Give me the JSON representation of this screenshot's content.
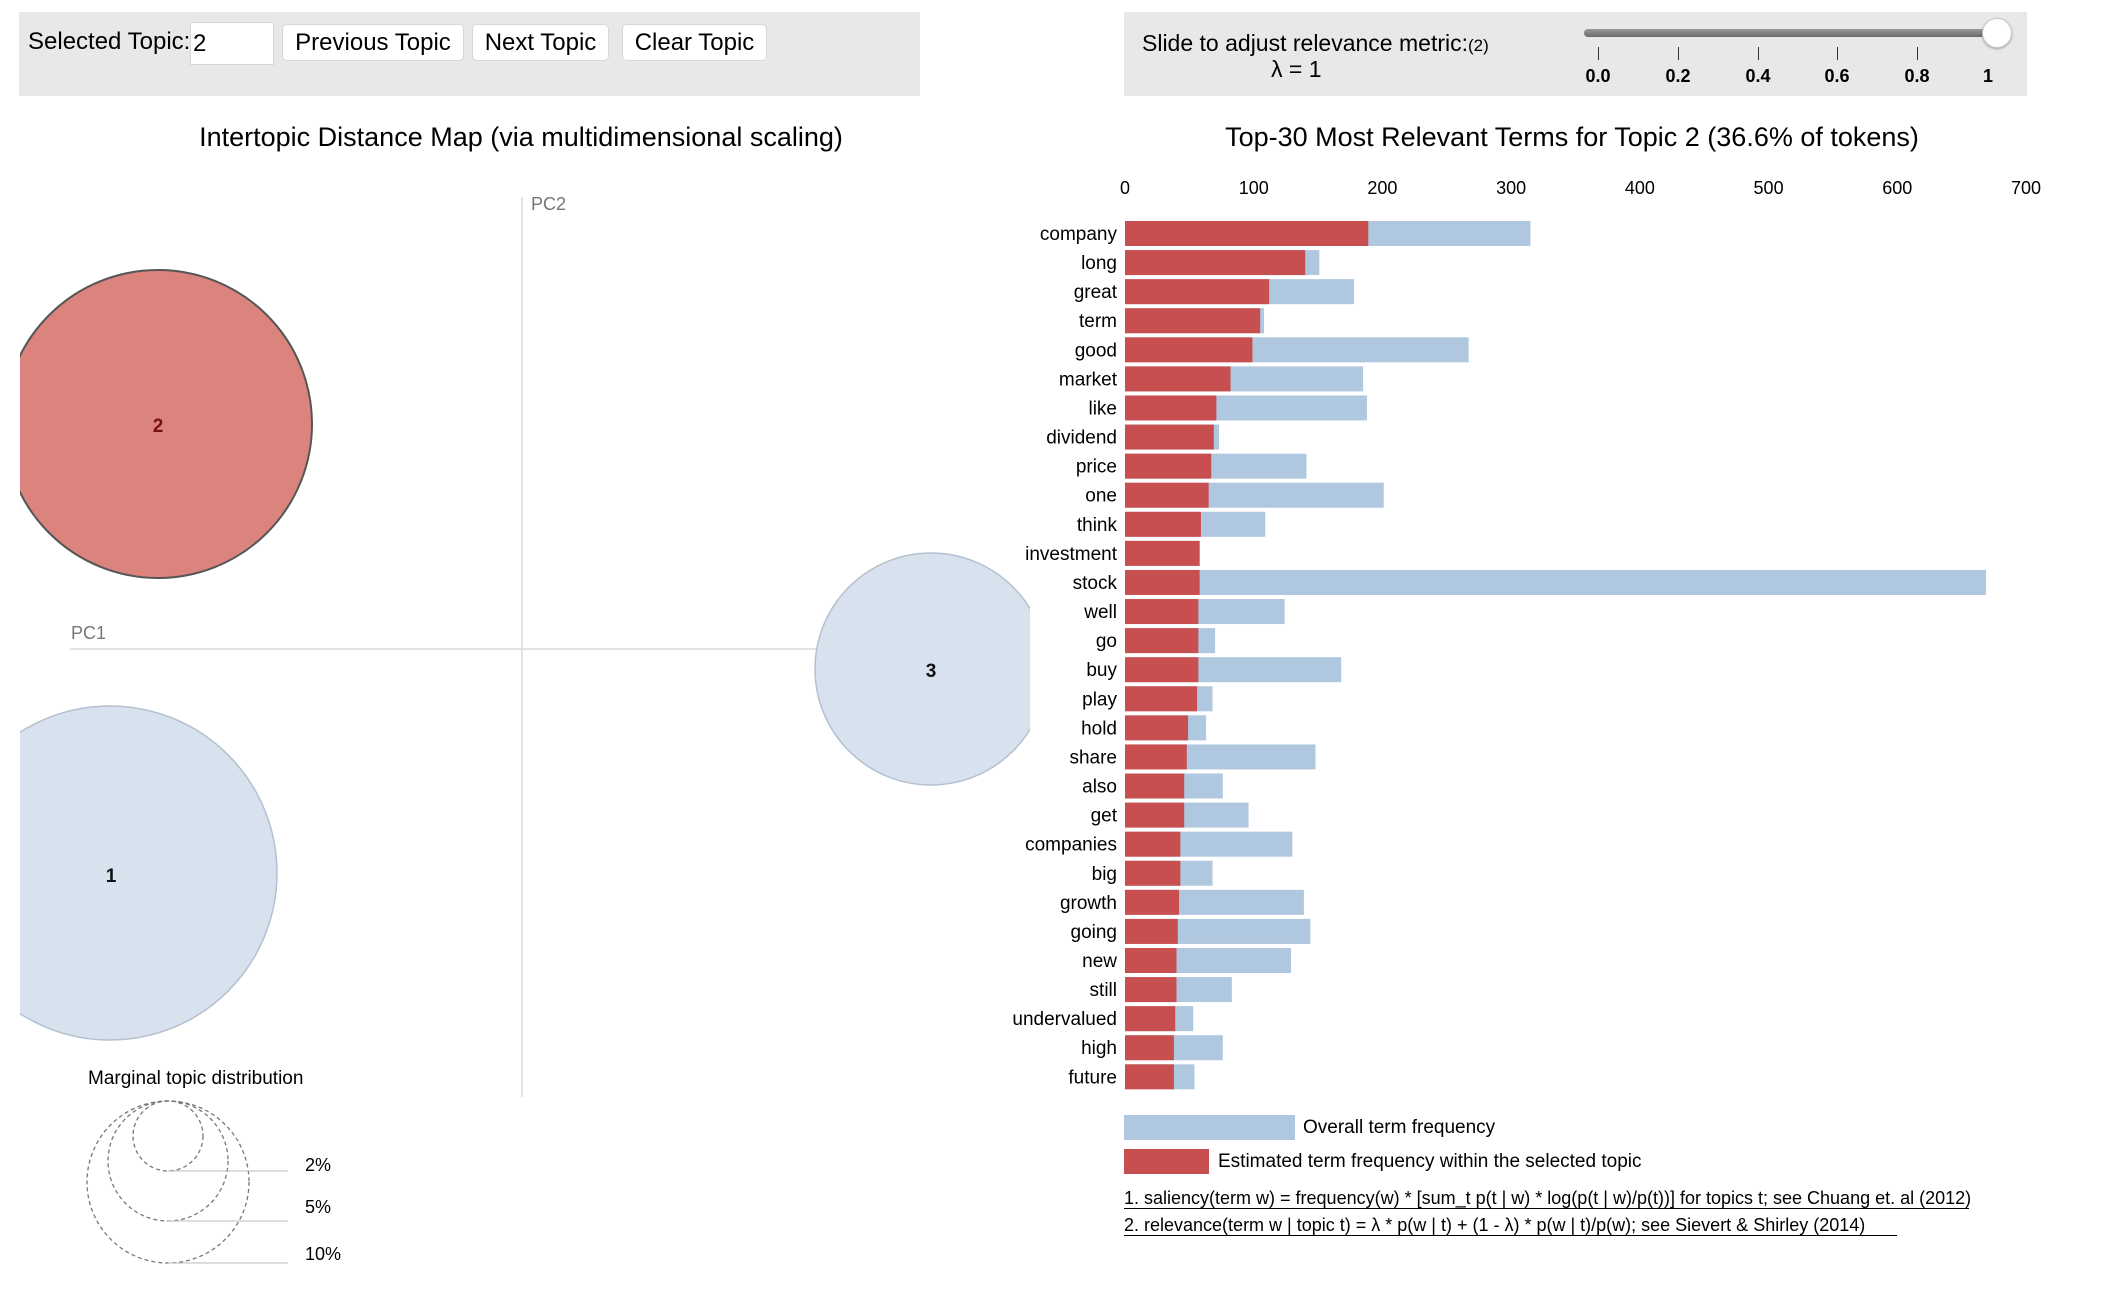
{
  "controls": {
    "selected_topic_label": "Selected Topic:",
    "selected_topic_value": "2",
    "prev_label": "Previous Topic",
    "next_label": "Next Topic",
    "clear_label": "Clear Topic"
  },
  "slider": {
    "label": "Slide to adjust relevance metric:",
    "footnote_ref": "(2)",
    "lambda_label": "λ = 1",
    "value": 1,
    "ticks": [
      "0.0",
      "0.2",
      "0.4",
      "0.6",
      "0.8",
      "1"
    ]
  },
  "intertopic_map": {
    "title": "Intertopic Distance Map (via multidimensional scaling)",
    "axis_x_label": "PC1",
    "axis_y_label": "PC2",
    "marginal_title": "Marginal topic distribution",
    "marginal_labels": [
      "2%",
      "5%",
      "10%"
    ],
    "topics": [
      {
        "id": "1",
        "selected": false
      },
      {
        "id": "2",
        "selected": true
      },
      {
        "id": "3",
        "selected": false
      }
    ]
  },
  "colors": {
    "overall": "#b0c7e0",
    "topic": "#c84f4f",
    "selected_circle": "#db847e",
    "circle_default": "#d8e2ee"
  },
  "chart_data": {
    "type": "bar",
    "title": "Top-30 Most Relevant Terms for Topic 2 (36.6% of tokens)",
    "orientation": "horizontal",
    "xlim": [
      0,
      700
    ],
    "x_ticks": [
      "0",
      "100",
      "200",
      "300",
      "400",
      "500",
      "600",
      "700"
    ],
    "categories": [
      "company",
      "long",
      "great",
      "term",
      "good",
      "market",
      "like",
      "dividend",
      "price",
      "one",
      "think",
      "investment",
      "stock",
      "well",
      "go",
      "buy",
      "play",
      "hold",
      "share",
      "also",
      "get",
      "companies",
      "big",
      "growth",
      "going",
      "new",
      "still",
      "undervalued",
      "high",
      "future"
    ],
    "series": [
      {
        "name": "Overall term frequency",
        "values": [
          315,
          151,
          178,
          108,
          267,
          185,
          188,
          73,
          141,
          201,
          109,
          58,
          669,
          124,
          70,
          168,
          68,
          63,
          148,
          76,
          96,
          130,
          68,
          139,
          144,
          129,
          83,
          53,
          76,
          54
        ]
      },
      {
        "name": "Estimated term frequency within the selected topic",
        "values": [
          189,
          140,
          112,
          105,
          99,
          82,
          71,
          69,
          67,
          65,
          59,
          58,
          58,
          57,
          57,
          57,
          56,
          49,
          48,
          46,
          46,
          43,
          43,
          42,
          41,
          40,
          40,
          39,
          38,
          38
        ]
      }
    ],
    "legend": [
      "Overall term frequency",
      "Estimated term frequency within the selected topic"
    ]
  },
  "footnotes": [
    "1. saliency(term w) = frequency(w) * [sum_t p(t | w) * log(p(t | w)/p(t))] for topics t; see Chuang et. al (2012)",
    "2. relevance(term w | topic t) = λ * p(w | t) + (1 - λ) * p(w | t)/p(w); see Sievert & Shirley (2014)"
  ]
}
